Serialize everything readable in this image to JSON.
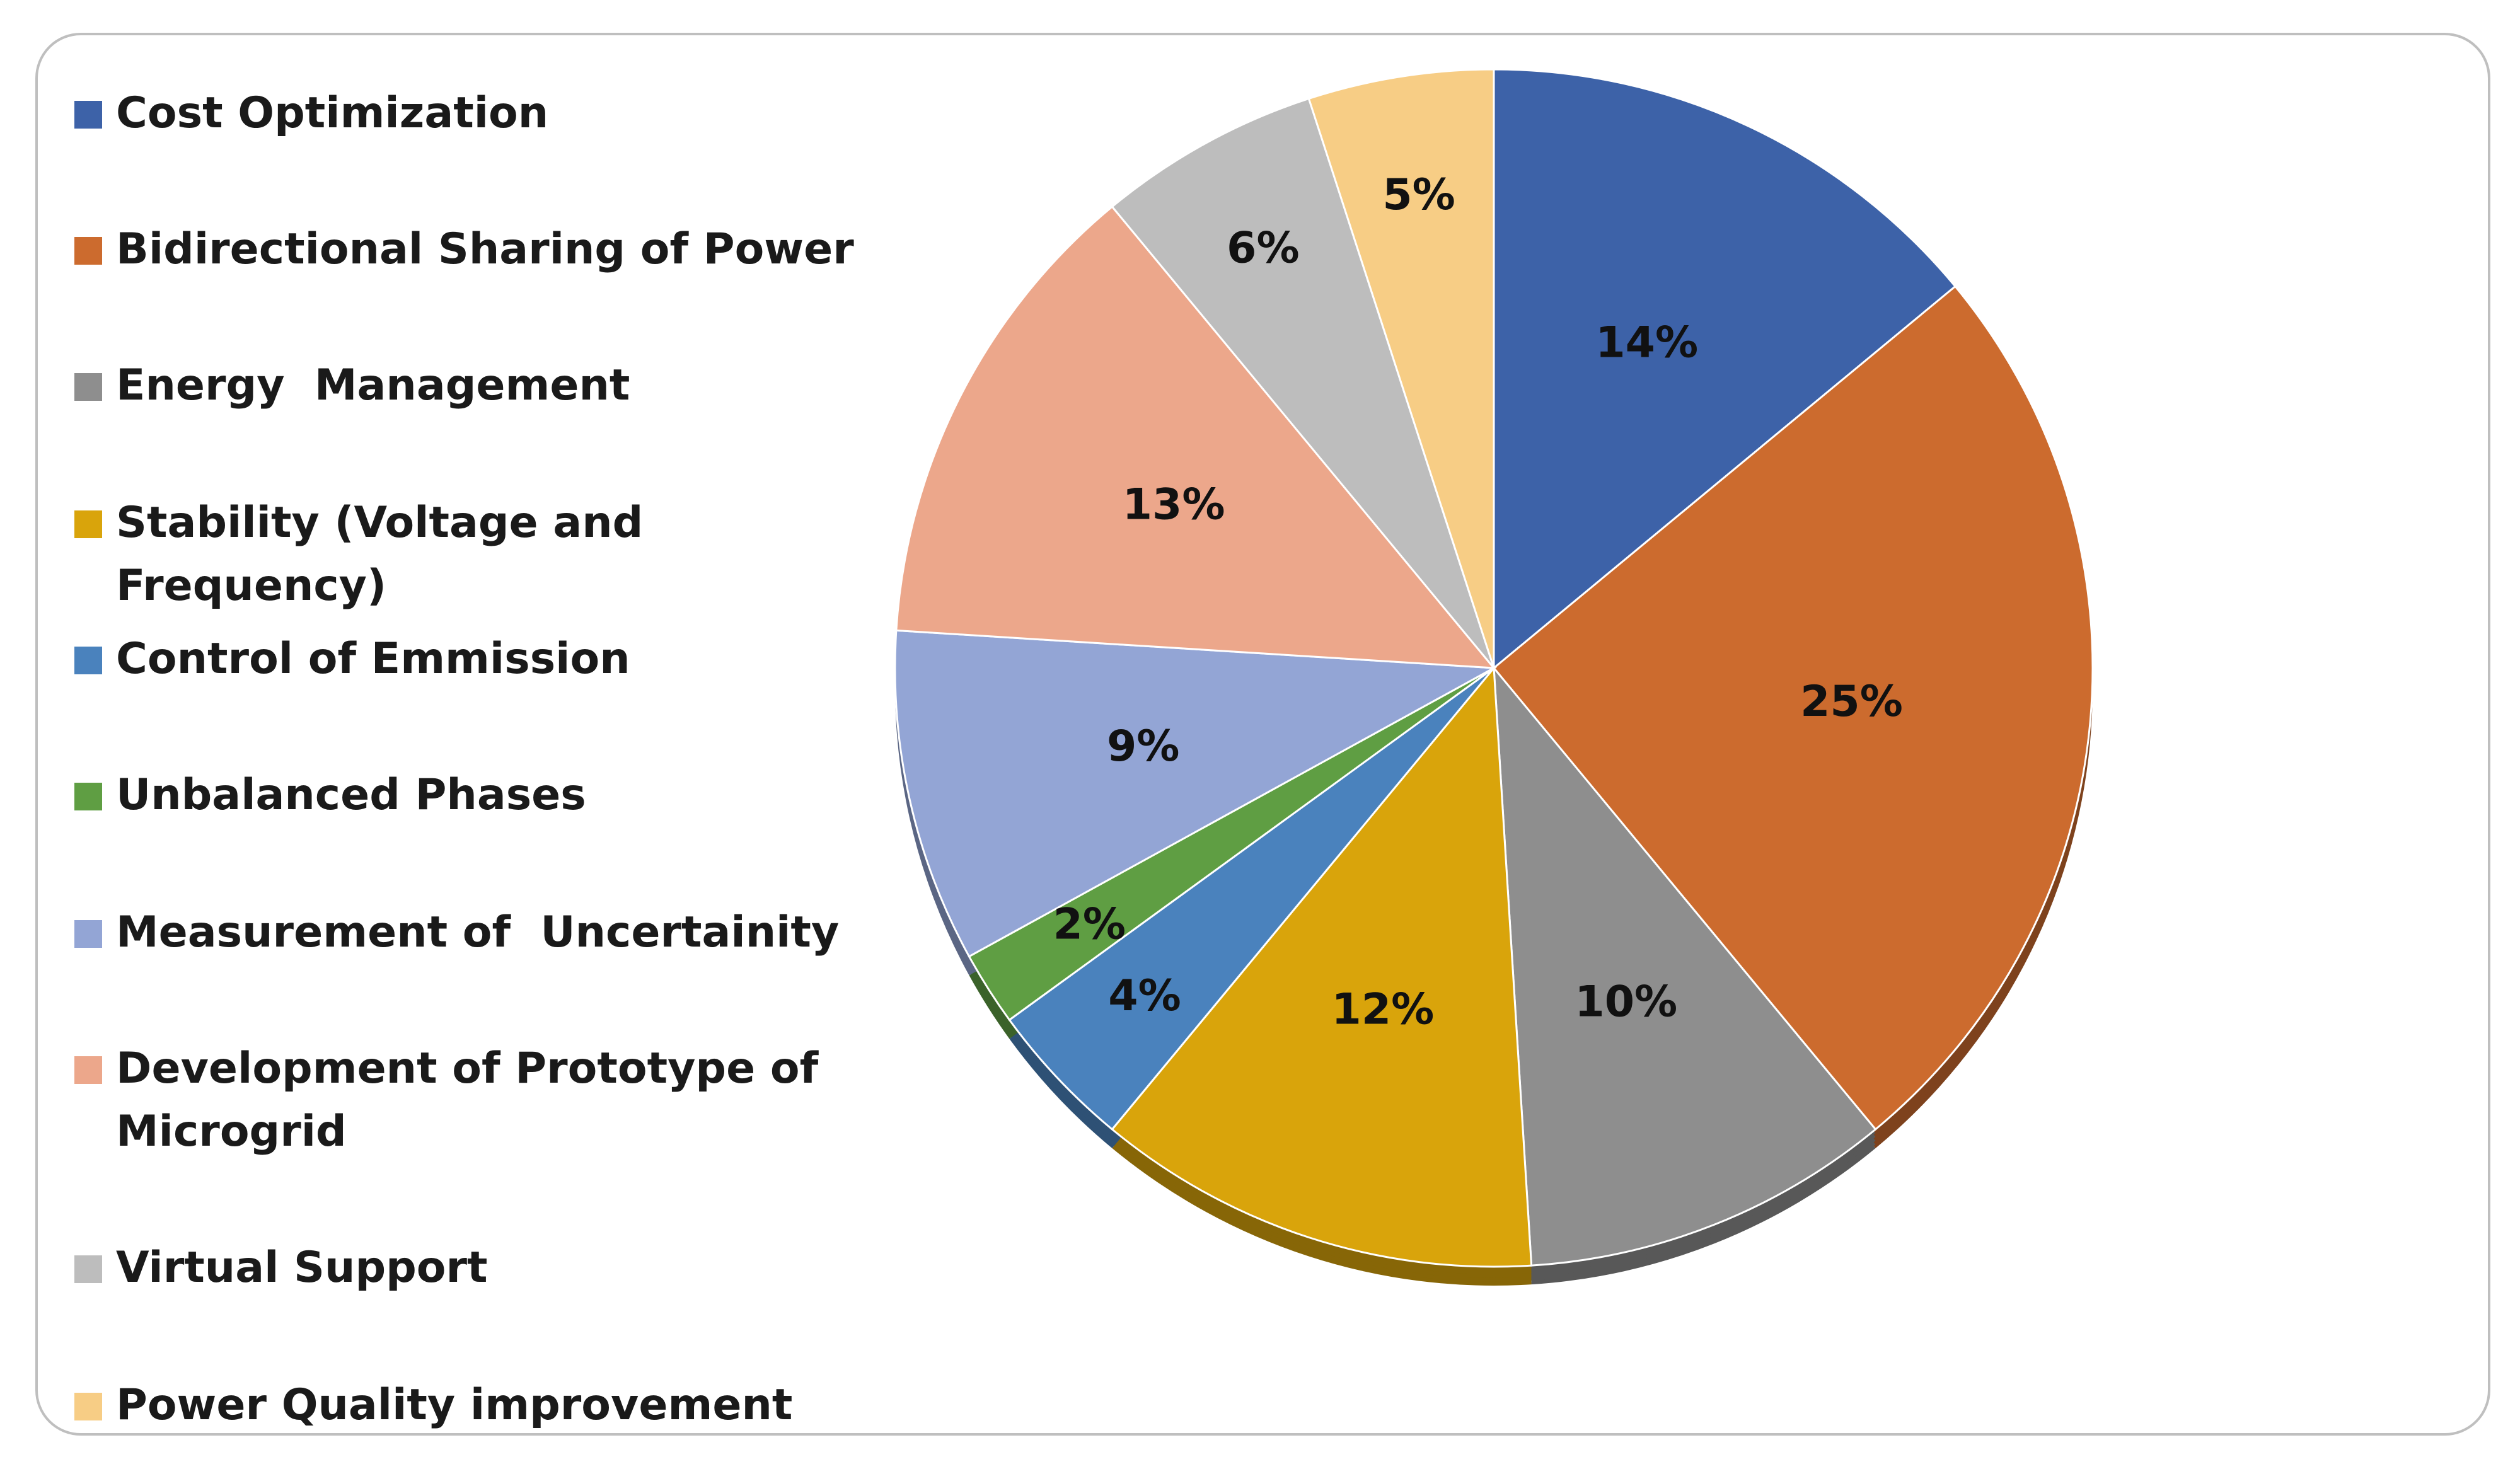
{
  "chart_data": {
    "type": "pie",
    "title": "",
    "slices": [
      {
        "label": "Cost Optimization",
        "value": 14,
        "display": "14%",
        "color": "#3d62a8"
      },
      {
        "label": "Bidirectional Sharing of Power",
        "value": 25,
        "display": "25%",
        "color": "#cc6b2e"
      },
      {
        "label": "Energy  Management",
        "value": 10,
        "display": "10%",
        "color": "#8e8e8e"
      },
      {
        "label": "Stability (Voltage and Frequency)",
        "value": 12,
        "display": "12%",
        "color": "#d9a40b"
      },
      {
        "label": "Control of Emmission",
        "value": 4,
        "display": "4%",
        "color": "#4a82bd"
      },
      {
        "label": "Unbalanced Phases",
        "value": 2,
        "display": "2%",
        "color": "#5f9e43"
      },
      {
        "label": "Measurement of  Uncertainity",
        "value": 9,
        "display": "9%",
        "color": "#93a5d5"
      },
      {
        "label": "Development of Prototype of Microgrid",
        "value": 13,
        "display": "13%",
        "color": "#eca78b"
      },
      {
        "label": "Virtual Support",
        "value": 6,
        "display": "6%",
        "color": "#bdbdbd"
      },
      {
        "label": "Power Quality improvement",
        "value": 5,
        "display": "5%",
        "color": "#f7cd85"
      }
    ],
    "legend_position": "left"
  }
}
